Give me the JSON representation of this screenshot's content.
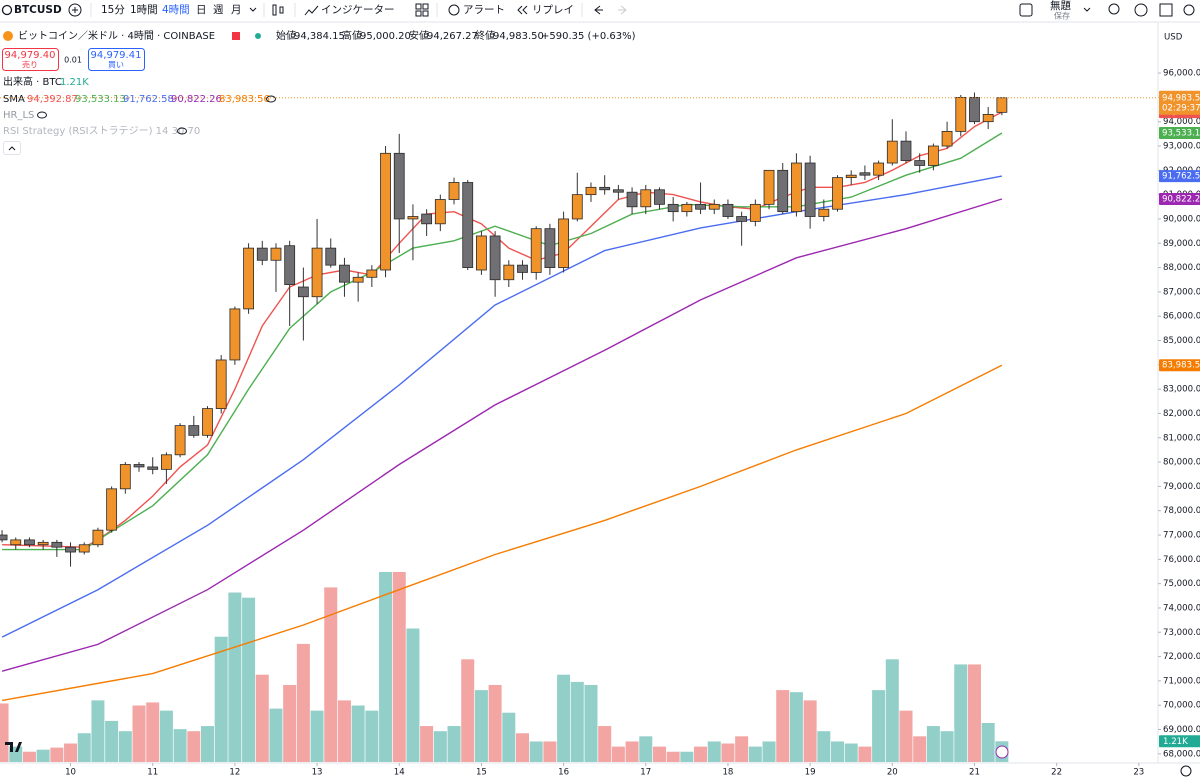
{
  "toolbar": {
    "symbol": "BTCUSD",
    "intervals": [
      "15分",
      "1時間",
      "4時間",
      "日",
      "週",
      "月"
    ],
    "indicators": "インジケーター",
    "alert": "アラート",
    "replay": "リプレイ",
    "layout_name": "無題",
    "save": "保存"
  },
  "legend": {
    "symbol_name": "ビットコイン／米ドル · 4時間 · COINBASE",
    "ohlc": [
      {
        "label": "始値",
        "value": "94,384.15"
      },
      {
        "label": "高値",
        "value": "95,000.20"
      },
      {
        "label": "安値",
        "value": "94,267.27"
      },
      {
        "label": "終値",
        "value": "94,983.50"
      }
    ],
    "change": "+590.35 (+0.63%)",
    "sell": {
      "price": "94,979.40",
      "label": "売り"
    },
    "spread": "0.01",
    "buy": {
      "price": "94,979.41",
      "label": "買い"
    },
    "volume_title": "出来高 · BTC",
    "volume_value": "1.21K",
    "sma_title": "SMA",
    "hr_ls": "HR_LS",
    "rsi": "RSI Strategy (RSIストラテジー) 14 30 70"
  },
  "chart_data": {
    "type": "candlestick",
    "currency": "USD",
    "countdown": "02:29:37",
    "up_color": "#f0932b",
    "down_color": "#707074",
    "volume_up_color": "#92cfc9",
    "volume_down_color": "#f2a5a3",
    "open": [
      77000,
      76600,
      76800,
      76600,
      76700,
      76500,
      76300,
      76600,
      77200,
      78900,
      79900,
      79800,
      79700,
      80300,
      81500,
      81100,
      82200,
      84200,
      86300,
      88800,
      88300,
      88900,
      87200,
      86800,
      88800,
      88100,
      87400,
      87600,
      87900,
      92700,
      90000,
      90200,
      89800,
      90800,
      91500,
      87900,
      89300,
      87500,
      88100,
      87800,
      89600,
      88000,
      90000,
      91000,
      91300,
      91200,
      91100,
      90500,
      91200,
      90600,
      90300,
      90600,
      90400,
      90600,
      90100,
      89900,
      90600,
      92000,
      90300,
      92300,
      90100,
      90400,
      91700,
      91900,
      91800,
      92300,
      93200,
      92400,
      92200,
      93000,
      93600,
      95000,
      94000,
      94384.15
    ],
    "high": [
      77200,
      76900,
      76900,
      76800,
      76800,
      76700,
      76700,
      77300,
      79000,
      80000,
      80000,
      80200,
      80400,
      81600,
      81900,
      82300,
      84400,
      86400,
      89000,
      89100,
      89000,
      89100,
      88000,
      90000,
      89200,
      88400,
      87800,
      88100,
      93000,
      93500,
      90600,
      90400,
      91000,
      91700,
      91600,
      89500,
      89500,
      88300,
      88300,
      89700,
      89800,
      90300,
      91900,
      91500,
      91800,
      91400,
      91300,
      91400,
      91300,
      90900,
      90700,
      91500,
      90800,
      90800,
      90300,
      90800,
      92000,
      92300,
      92700,
      92600,
      90800,
      91800,
      92000,
      92200,
      92400,
      94100,
      93600,
      92700,
      93100,
      94000,
      95100,
      95200,
      94600,
      95000.2
    ],
    "low": [
      76700,
      76400,
      76500,
      76400,
      76100,
      75700,
      76200,
      76500,
      77100,
      78700,
      79600,
      79500,
      79100,
      80200,
      81000,
      81000,
      82000,
      84000,
      86100,
      88100,
      87000,
      85600,
      85000,
      86500,
      88000,
      86800,
      86600,
      87200,
      87600,
      88600,
      88300,
      89300,
      89500,
      90600,
      87900,
      87700,
      86800,
      87200,
      87500,
      87500,
      87700,
      87800,
      89900,
      90700,
      91000,
      90800,
      90200,
      90200,
      90400,
      89900,
      90100,
      90200,
      90200,
      90000,
      88900,
      89700,
      90400,
      90200,
      90100,
      89600,
      89900,
      90300,
      91400,
      91600,
      91600,
      92200,
      92300,
      91900,
      92000,
      92900,
      93400,
      93900,
      93700,
      94267.27
    ],
    "close": [
      76800,
      76800,
      76600,
      76700,
      76500,
      76300,
      76600,
      77200,
      78900,
      79900,
      79800,
      79700,
      80300,
      81500,
      81100,
      82200,
      84200,
      86300,
      88800,
      88300,
      88800,
      87300,
      86800,
      88800,
      88100,
      87400,
      87600,
      87900,
      92700,
      90000,
      90100,
      89800,
      90800,
      91500,
      88000,
      89300,
      87500,
      88100,
      87800,
      89600,
      88000,
      90000,
      91000,
      91300,
      91200,
      91100,
      90500,
      91200,
      90600,
      90300,
      90600,
      90400,
      90600,
      90100,
      89900,
      90600,
      92000,
      90300,
      92300,
      90100,
      90400,
      91700,
      91800,
      91800,
      92300,
      93200,
      92400,
      92200,
      93000,
      93600,
      95000,
      94000,
      94300,
      94983.5
    ],
    "volume": [
      3.42,
      0.9,
      0.6,
      0.72,
      0.84,
      1.08,
      1.68,
      3.6,
      2.4,
      1.8,
      3.3,
      3.48,
      3.0,
      1.92,
      1.8,
      2.1,
      7.32,
      9.9,
      9.6,
      5.1,
      3.12,
      4.5,
      6.9,
      3.0,
      10.2,
      3.6,
      3.3,
      3.0,
      11.1,
      11.1,
      7.8,
      2.1,
      1.8,
      2.1,
      6.0,
      4.2,
      4.5,
      2.88,
      1.68,
      1.2,
      1.2,
      5.1,
      4.68,
      4.5,
      2.1,
      0.9,
      1.2,
      1.5,
      0.9,
      0.6,
      0.6,
      0.9,
      1.2,
      1.08,
      1.5,
      0.9,
      1.2,
      4.2,
      4.08,
      3.6,
      1.8,
      1.2,
      1.08,
      0.9,
      4.2,
      6.0,
      3.0,
      1.5,
      2.1,
      1.8,
      5.7,
      5.7,
      2.28,
      1.21
    ],
    "series": [
      {
        "color": "#ef5350",
        "last_label": "94,392.87",
        "x": [
          0,
          6,
          7,
          9,
          11,
          13,
          15,
          17,
          19,
          21,
          23,
          25,
          27,
          29,
          31,
          33,
          35,
          37,
          39,
          41,
          43,
          45,
          47,
          49,
          51,
          53,
          55,
          57,
          59,
          61,
          63,
          65,
          67,
          69,
          71,
          72,
          73
        ],
        "values": [
          76600,
          76500,
          76800,
          77600,
          78600,
          79800,
          80700,
          83000,
          85600,
          87200,
          87700,
          87900,
          87700,
          89000,
          90200,
          90300,
          89800,
          88800,
          88300,
          88600,
          89700,
          90800,
          91100,
          91000,
          90700,
          90500,
          90400,
          90900,
          91300,
          91300,
          91500,
          92000,
          92600,
          92900,
          93800,
          94100,
          94392.87
        ]
      },
      {
        "color": "#4caf50",
        "last_label": "93,533.13",
        "x": [
          0,
          6,
          7,
          11,
          15,
          18,
          21,
          24,
          27,
          30,
          33,
          36,
          40,
          43,
          46,
          50,
          54,
          58,
          62,
          66,
          70,
          73
        ],
        "values": [
          76400,
          76400,
          76800,
          78200,
          80300,
          83000,
          85500,
          87000,
          87800,
          88800,
          89100,
          89700,
          88900,
          89400,
          90200,
          90600,
          90500,
          90500,
          90900,
          91800,
          92500,
          93533.13
        ]
      },
      {
        "color": "#4a6cf0",
        "last_label": "91,762.58",
        "x": [
          0,
          7,
          15,
          22,
          29,
          36,
          44,
          51,
          58,
          66,
          73
        ],
        "values": [
          72800,
          74750,
          77400,
          80100,
          83170,
          86460,
          88700,
          89630,
          90300,
          91000,
          91762.58
        ]
      },
      {
        "color": "#9c27b0",
        "last_label": "90,822.26",
        "x": [
          0,
          7,
          15,
          22,
          29,
          36,
          44,
          51,
          58,
          66,
          73
        ],
        "values": [
          71400,
          72500,
          74750,
          77200,
          79900,
          82350,
          84600,
          86670,
          88400,
          89600,
          90822.26
        ]
      },
      {
        "color": "#f57c00",
        "last_label": "83,983.56",
        "x": [
          0,
          11,
          22,
          29,
          36,
          44,
          51,
          58,
          66,
          73
        ],
        "values": [
          70200,
          71300,
          73300,
          74750,
          76200,
          77600,
          79000,
          80500,
          82000,
          83983.56
        ]
      }
    ],
    "xlim": [
      -0.15,
      84.4
    ],
    "xticks": [
      {
        "value": 5,
        "label": "10"
      },
      {
        "value": 11,
        "label": "11"
      },
      {
        "value": 17,
        "label": "12"
      },
      {
        "value": 23,
        "label": "13"
      },
      {
        "value": 29,
        "label": "14"
      },
      {
        "value": 35,
        "label": "15"
      },
      {
        "value": 41,
        "label": "16"
      },
      {
        "value": 47,
        "label": "17"
      },
      {
        "value": 53,
        "label": "18"
      },
      {
        "value": 59,
        "label": "19"
      },
      {
        "value": 65,
        "label": "20"
      },
      {
        "value": 71,
        "label": "21"
      },
      {
        "value": 77,
        "label": "22"
      },
      {
        "value": 83,
        "label": "23"
      }
    ],
    "ylim": [
      67500,
      97360
    ],
    "yticks": [
      {
        "value": 68000,
        "label": "68,000.00"
      },
      {
        "value": 69000,
        "label": "69,000.00"
      },
      {
        "value": 70000,
        "label": "70,000.00"
      },
      {
        "value": 71000,
        "label": "71,000.00"
      },
      {
        "value": 72000,
        "label": "72,000.00"
      },
      {
        "value": 73000,
        "label": "73,000.00"
      },
      {
        "value": 74000,
        "label": "74,000.00"
      },
      {
        "value": 75000,
        "label": "75,000.00"
      },
      {
        "value": 76000,
        "label": "76,000.00"
      },
      {
        "value": 77000,
        "label": "77,000.00"
      },
      {
        "value": 78000,
        "label": "78,000.00"
      },
      {
        "value": 79000,
        "label": "79,000.00"
      },
      {
        "value": 80000,
        "label": "80,000.00"
      },
      {
        "value": 81000,
        "label": "81,000.00"
      },
      {
        "value": 82000,
        "label": "82,000.00"
      },
      {
        "value": 83000,
        "label": "83,000.00"
      },
      {
        "value": 84000,
        "label": "84,000.00"
      },
      {
        "value": 85000,
        "label": "85,000.00"
      },
      {
        "value": 86000,
        "label": "86,000.00"
      },
      {
        "value": 87000,
        "label": "87,000.00"
      },
      {
        "value": 88000,
        "label": "88,000.00"
      },
      {
        "value": 89000,
        "label": "89,000.00"
      },
      {
        "value": 90000,
        "label": "90,000.00"
      },
      {
        "value": 91000,
        "label": "91,000.00"
      },
      {
        "value": 92000,
        "label": "92,000.00"
      },
      {
        "value": 93000,
        "label": "93,000.00"
      },
      {
        "value": 94000,
        "label": "94,000.00"
      },
      {
        "value": 95000,
        "label": "95,000.00"
      },
      {
        "value": 96000,
        "label": "96,000.00"
      }
    ],
    "grid": false
  }
}
